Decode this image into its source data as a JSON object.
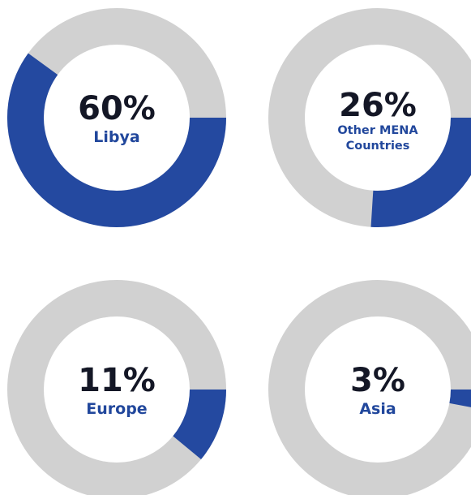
{
  "chart_data": {
    "type": "donut",
    "colors": {
      "value_arc": "#2449a0",
      "track": "#d1d1d1",
      "percent_text": "#141726",
      "label_text": "#21479c"
    },
    "items": [
      {
        "value": 60,
        "value_label": "60%",
        "label_lines": [
          "Libya"
        ]
      },
      {
        "value": 26,
        "value_label": "26%",
        "label_lines": [
          "Other MENA",
          "Countries"
        ]
      },
      {
        "value": 11,
        "value_label": "11%",
        "label_lines": [
          "Europe"
        ]
      },
      {
        "value": 3,
        "value_label": "3%",
        "label_lines": [
          "Asia"
        ]
      }
    ]
  }
}
